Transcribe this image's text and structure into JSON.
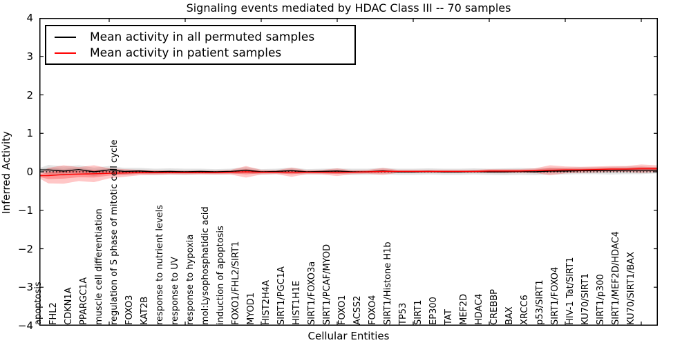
{
  "title": "Signaling events mediated by HDAC Class III -- 70 samples",
  "axes": {
    "xlabel": "Cellular Entities",
    "ylabel": "Inferred Activity",
    "yticks": [
      "4",
      "3",
      "2",
      "1",
      "0",
      "−1",
      "−2",
      "−3",
      "−4"
    ],
    "ytick_values": [
      4,
      3,
      2,
      1,
      0,
      -1,
      -2,
      -3,
      -4
    ]
  },
  "legend": {
    "items": [
      {
        "label": "Mean activity in all permuted samples",
        "color": "#000000"
      },
      {
        "label": "Mean activity in patient samples",
        "color": "#ff0000"
      }
    ]
  },
  "chart_data": {
    "type": "line",
    "title": "Signaling events mediated by HDAC Class III -- 70 samples",
    "xlabel": "Cellular Entities",
    "ylabel": "Inferred Activity",
    "ylim": [
      -4,
      4
    ],
    "grid": false,
    "legend_position": "upper left",
    "zero_line": {
      "style": "dotted",
      "color": "#000000",
      "y": 0
    },
    "categories": [
      "apoptosis",
      "FHL2",
      "CDKN1A",
      "PPARGC1A",
      "muscle cell differentiation",
      "regulation of S phase of mitotic cell cycle",
      "FOXO3",
      "KAT2B",
      "response to nutrient levels",
      "response to UV",
      "response to hypoxia",
      "mol:Lysophosphatidic acid",
      "induction of apoptosis",
      "FOXO1/FHL2/SIRT1",
      "MYOD1",
      "HIST2H4A",
      "SIRT1/PGC1A",
      "HIST1H1E",
      "SIRT1/FOXO3a",
      "SIRT1/PCAF/MYOD",
      "FOXO1",
      "ACSS2",
      "FOXO4",
      "SIRT1/Histone H1b",
      "TP53",
      "SIRT1",
      "EP300",
      "TAT",
      "MEF2D",
      "HDAC4",
      "CREBBP",
      "BAX",
      "XRCC6",
      "p53/SIRT1",
      "SIRT1/FOXO4",
      "HIV-1 Tat/SIRT1",
      "KU70/SIRT1",
      "SIRT1/p300",
      "SIRT1/MEF2D/HDAC4",
      "KU70/SIRT1/BAX"
    ],
    "series": [
      {
        "name": "Mean activity in all permuted samples",
        "color": "#000000",
        "values": [
          0.05,
          0.02,
          0.06,
          0.0,
          0.05,
          0.01,
          0.02,
          0.0,
          0.01,
          0.0,
          0.01,
          0.0,
          0.01,
          0.04,
          0.0,
          0.01,
          0.03,
          0.0,
          0.01,
          0.02,
          0.0,
          0.0,
          0.02,
          0.0,
          0.0,
          0.01,
          0.0,
          0.0,
          0.01,
          0.0,
          0.0,
          0.01,
          0.0,
          0.02,
          0.02,
          0.03,
          0.03,
          0.03,
          0.04,
          0.04
        ]
      },
      {
        "name": "Mean activity in patient samples",
        "color": "#ff0000",
        "values": [
          -0.1,
          -0.07,
          -0.06,
          -0.05,
          -0.04,
          -0.03,
          -0.02,
          -0.02,
          -0.02,
          -0.02,
          -0.02,
          -0.02,
          -0.01,
          0.0,
          -0.01,
          -0.01,
          -0.01,
          -0.01,
          -0.01,
          -0.01,
          -0.01,
          0.0,
          0.01,
          0.01,
          0.01,
          0.01,
          0.01,
          0.01,
          0.01,
          0.02,
          0.02,
          0.02,
          0.03,
          0.04,
          0.05,
          0.05,
          0.06,
          0.07,
          0.07,
          0.08
        ]
      }
    ],
    "bands": [
      {
        "name": "permuted-samples-spread",
        "center_series": 0,
        "color": "#999999",
        "alpha": 0.28,
        "half_widths": [
          0.13,
          0.12,
          0.11,
          0.11,
          0.1,
          0.09,
          0.08,
          0.08,
          0.08,
          0.08,
          0.07,
          0.07,
          0.07,
          0.08,
          0.07,
          0.07,
          0.08,
          0.07,
          0.07,
          0.07,
          0.08,
          0.08,
          0.08,
          0.08,
          0.08,
          0.08,
          0.08,
          0.08,
          0.08,
          0.08,
          0.09,
          0.09,
          0.09,
          0.09,
          0.09,
          0.09,
          0.09,
          0.1,
          0.1,
          0.1
        ]
      },
      {
        "name": "patient-samples-spread",
        "center_series": 1,
        "color": "#ff0000",
        "alpha": 0.22,
        "half_widths": [
          0.2,
          0.24,
          0.18,
          0.22,
          0.13,
          0.1,
          0.07,
          0.06,
          0.05,
          0.05,
          0.05,
          0.05,
          0.06,
          0.15,
          0.06,
          0.05,
          0.12,
          0.05,
          0.06,
          0.1,
          0.05,
          0.05,
          0.09,
          0.04,
          0.04,
          0.04,
          0.04,
          0.04,
          0.04,
          0.05,
          0.05,
          0.05,
          0.06,
          0.13,
          0.09,
          0.08,
          0.08,
          0.08,
          0.08,
          0.11
        ]
      }
    ]
  }
}
